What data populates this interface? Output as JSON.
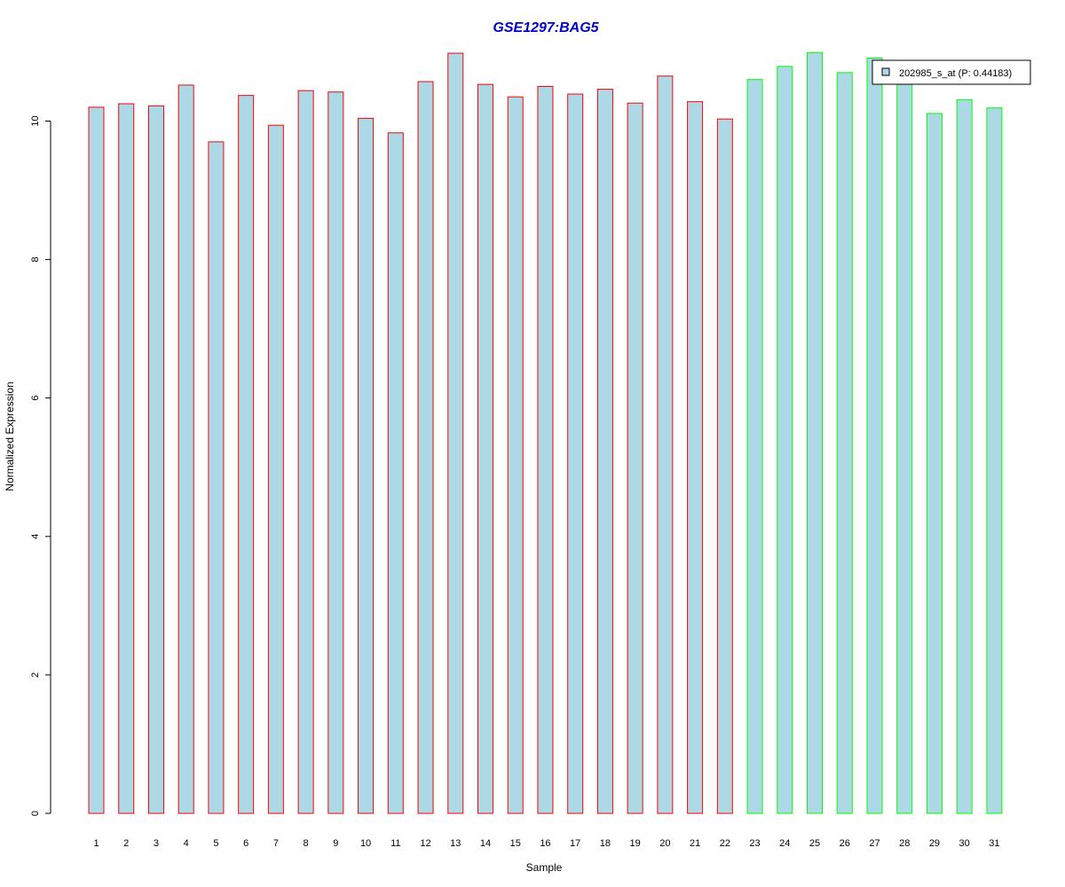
{
  "chart_data": {
    "type": "bar",
    "title": "GSE1297:BAG5",
    "xlabel": "Sample",
    "ylabel": "Normalized Expression",
    "categories": [
      "1",
      "2",
      "3",
      "4",
      "5",
      "6",
      "7",
      "8",
      "9",
      "10",
      "11",
      "12",
      "13",
      "14",
      "15",
      "16",
      "17",
      "18",
      "19",
      "20",
      "21",
      "22",
      "23",
      "24",
      "25",
      "26",
      "27",
      "28",
      "29",
      "30",
      "31"
    ],
    "series": [
      {
        "name": "202985_s_at (P: 0.44183)",
        "values": [
          10.2,
          10.25,
          10.22,
          10.52,
          9.7,
          10.37,
          9.94,
          10.44,
          10.42,
          10.04,
          9.83,
          10.57,
          10.98,
          10.53,
          10.35,
          10.5,
          10.39,
          10.46,
          10.26,
          10.65,
          10.28,
          10.03,
          10.6,
          10.79,
          10.99,
          10.7,
          10.91,
          10.56,
          10.11,
          10.31,
          10.19
        ]
      }
    ],
    "groups": [
      {
        "samples": "1-22",
        "border_color": "#ff0000"
      },
      {
        "samples": "23-31",
        "border_color": "#00ff00"
      }
    ],
    "bar_fill": "#add8e6",
    "title_color": "#0000cc",
    "ylim": [
      0,
      11
    ],
    "yticks": [
      0,
      2,
      4,
      6,
      8,
      10
    ],
    "grid": false,
    "legend_position": "top-right"
  }
}
